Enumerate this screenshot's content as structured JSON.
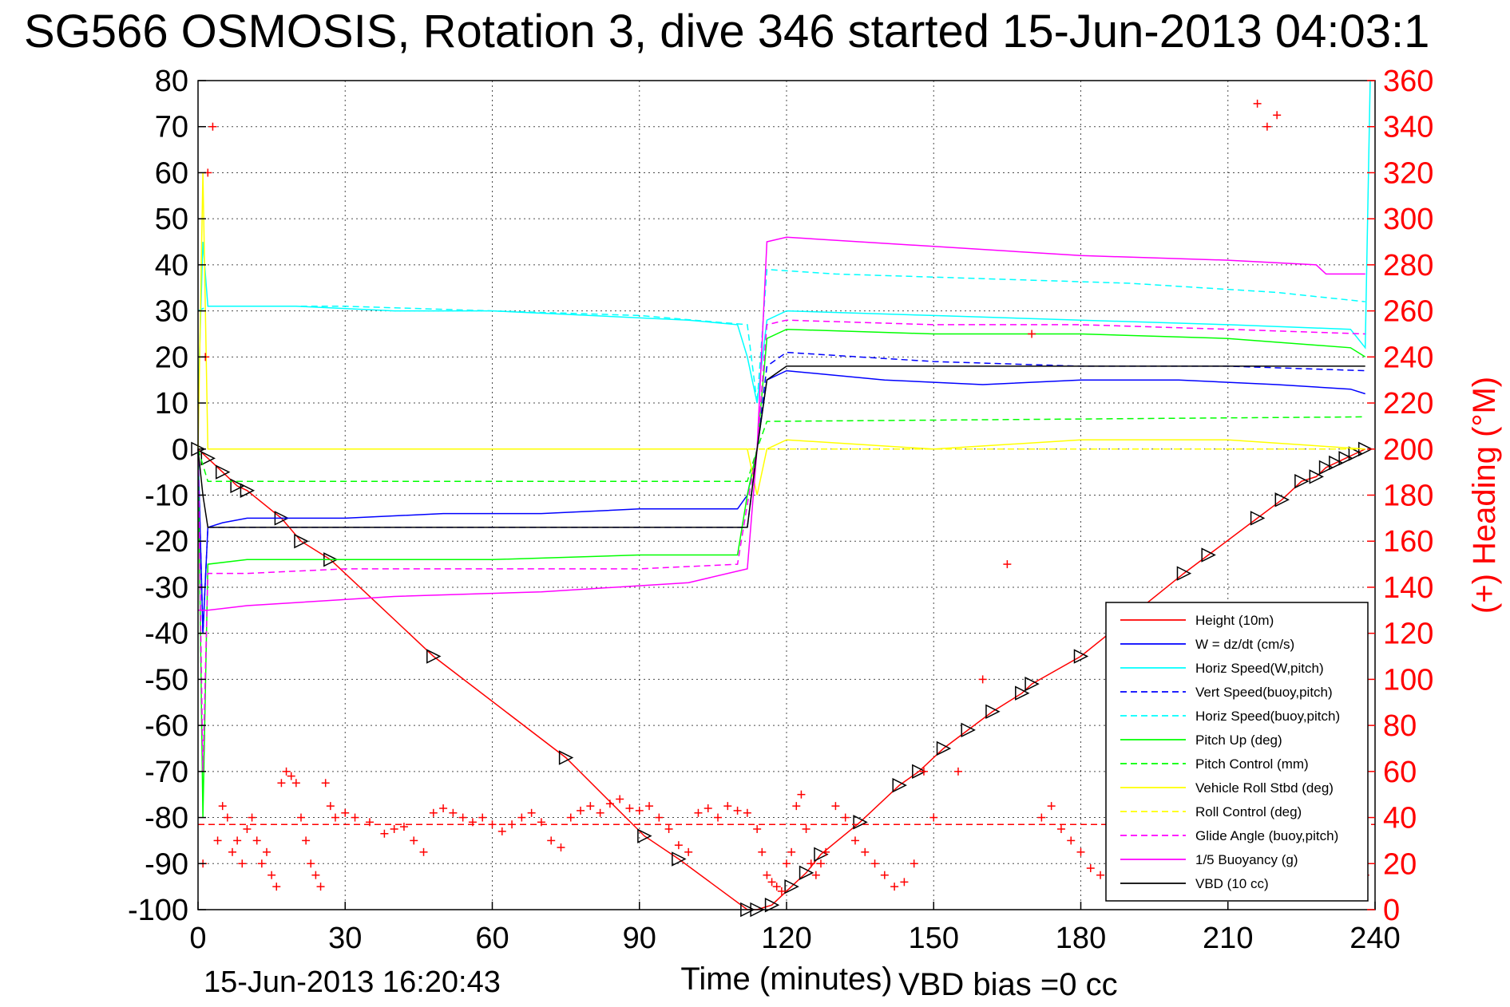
{
  "title": "SG566 OSMOSIS, Rotation 3, dive 346 started 15-Jun-2013 04:03:1",
  "footer": {
    "date": "15-Jun-2013 16:20:43",
    "vbd_bias": "VBD bias =0 cc"
  },
  "colors": {
    "height": "#ff0000",
    "w": "#0000ff",
    "horiz": "#00ffff",
    "pitch": "#00ff00",
    "roll": "#ffff00",
    "glide": "#ff00ff",
    "vbd": "#000000",
    "heading": "#ff0000"
  },
  "chart_data": {
    "type": "line",
    "xlabel": "Time (minutes)",
    "ylabel_right": "(+) Heading (°M)",
    "xlim": [
      0,
      240
    ],
    "ylim": [
      -100,
      80
    ],
    "ylim_right": [
      0,
      360
    ],
    "x_ticks": [
      0,
      30,
      60,
      90,
      120,
      150,
      180,
      210,
      240
    ],
    "y_ticks": [
      80,
      70,
      60,
      50,
      40,
      30,
      20,
      10,
      0,
      -10,
      -20,
      -30,
      -40,
      -50,
      -60,
      -70,
      -80,
      -90,
      -100
    ],
    "y_ticks_right": [
      360,
      340,
      320,
      300,
      280,
      260,
      240,
      220,
      200,
      180,
      160,
      140,
      120,
      100,
      80,
      60,
      40,
      20,
      0
    ],
    "grid": true,
    "legend_position": "bottom-right",
    "series": [
      {
        "name": "Height (10m)",
        "style": "solid",
        "colorKey": "height",
        "markers": "triangles",
        "x": [
          0,
          2,
          5,
          8,
          10,
          17,
          21,
          27,
          48,
          75,
          91,
          98,
          112,
          114,
          117,
          121,
          124,
          127,
          135,
          143,
          147,
          152,
          157,
          162,
          168,
          170,
          180,
          201,
          206,
          216,
          221,
          225,
          228,
          230,
          232,
          234,
          236,
          238
        ],
        "y": [
          0,
          -2,
          -5,
          -8,
          -9,
          -15,
          -20,
          -24,
          -45,
          -67,
          -84,
          -89,
          -100,
          -100,
          -99,
          -95,
          -92,
          -88,
          -81,
          -73,
          -70,
          -65,
          -61,
          -57,
          -53,
          -51,
          -45,
          -27,
          -23,
          -15,
          -11,
          -7,
          -6,
          -4,
          -3,
          -2,
          -1,
          0
        ]
      },
      {
        "name": "W = dz/dt (cm/s)",
        "style": "solid",
        "colorKey": "w",
        "x": [
          0,
          1,
          2,
          5,
          10,
          20,
          30,
          50,
          70,
          90,
          100,
          110,
          112,
          114,
          116,
          120,
          140,
          160,
          180,
          200,
          220,
          235,
          238
        ],
        "y": [
          0,
          -40,
          -17,
          -16,
          -15,
          -15,
          -15,
          -14,
          -14,
          -13,
          -13,
          -13,
          -10,
          0,
          15,
          17,
          15,
          14,
          15,
          15,
          14,
          13,
          12
        ]
      },
      {
        "name": "Horiz Speed(W,pitch)",
        "style": "solid",
        "colorKey": "horiz",
        "x": [
          0,
          1,
          2,
          5,
          20,
          40,
          60,
          80,
          100,
          110,
          112,
          114,
          116,
          120,
          150,
          180,
          210,
          235,
          238,
          239
        ],
        "y": [
          10,
          45,
          31,
          31,
          31,
          30,
          30,
          29,
          28,
          27,
          20,
          10,
          28,
          30,
          29,
          28,
          27,
          26,
          22,
          80
        ]
      },
      {
        "name": "Vert Speed(buoy,pitch)",
        "style": "dashed",
        "colorKey": "w",
        "x": [
          0,
          1,
          2,
          112,
          114,
          116,
          120,
          150,
          180,
          210,
          238
        ],
        "y": [
          0,
          -40,
          -17,
          -17,
          0,
          18,
          21,
          19,
          18,
          18,
          17
        ]
      },
      {
        "name": "Horiz Speed(buoy,pitch)",
        "style": "dashed",
        "colorKey": "horiz",
        "x": [
          0,
          2,
          30,
          60,
          90,
          112,
          114,
          116,
          130,
          160,
          190,
          220,
          238
        ],
        "y": [
          30,
          31,
          31,
          30,
          29,
          27,
          10,
          39,
          38,
          37,
          36,
          34,
          32
        ]
      },
      {
        "name": "Pitch Up (deg)",
        "style": "solid",
        "colorKey": "pitch",
        "x": [
          0,
          1,
          2,
          10,
          30,
          60,
          90,
          110,
          112,
          114,
          116,
          120,
          150,
          180,
          210,
          235,
          238
        ],
        "y": [
          0,
          -80,
          -25,
          -24,
          -24,
          -24,
          -23,
          -23,
          -10,
          0,
          24,
          26,
          25,
          25,
          24,
          22,
          20
        ]
      },
      {
        "name": "Pitch Control (mm)",
        "style": "dashed",
        "colorKey": "pitch",
        "x": [
          0,
          2,
          112,
          114,
          116,
          238
        ],
        "y": [
          0,
          -7,
          -7,
          0,
          6,
          7
        ]
      },
      {
        "name": "Vehicle Roll Stbd (deg)",
        "style": "solid",
        "colorKey": "roll",
        "x": [
          0,
          1,
          2,
          5,
          30,
          60,
          90,
          112,
          114,
          116,
          120,
          150,
          180,
          210,
          238
        ],
        "y": [
          0,
          60,
          0,
          0,
          0,
          0,
          0,
          0,
          -10,
          0,
          2,
          0,
          2,
          2,
          0
        ]
      },
      {
        "name": "Roll Control (deg)",
        "style": "dashed",
        "colorKey": "roll",
        "x": [
          0,
          2,
          112,
          114,
          116,
          238
        ],
        "y": [
          0,
          0,
          0,
          0,
          0,
          0
        ]
      },
      {
        "name": "Glide Angle (buoy,pitch)",
        "style": "dashed",
        "colorKey": "glide",
        "x": [
          0,
          1,
          2,
          10,
          30,
          60,
          90,
          110,
          112,
          114,
          116,
          120,
          150,
          180,
          210,
          238
        ],
        "y": [
          0,
          -70,
          -27,
          -27,
          -26,
          -26,
          -26,
          -25,
          -12,
          0,
          27,
          28,
          27,
          27,
          26,
          25
        ]
      },
      {
        "name": "1/5 Buoyancy (g)",
        "style": "solid",
        "colorKey": "glide",
        "x": [
          0,
          2,
          10,
          40,
          70,
          100,
          112,
          114,
          116,
          120,
          150,
          180,
          210,
          228,
          230,
          238
        ],
        "y": [
          -35,
          -35,
          -34,
          -32,
          -31,
          -29,
          -26,
          0,
          45,
          46,
          44,
          42,
          41,
          40,
          38,
          38
        ]
      },
      {
        "name": "VBD (10 cc)",
        "style": "solid",
        "colorKey": "vbd",
        "x": [
          0,
          1,
          2,
          112,
          114,
          116,
          120,
          238
        ],
        "y": [
          0,
          -10,
          -17,
          -17,
          0,
          15,
          18,
          18
        ]
      }
    ],
    "heading_series": {
      "marker": "+",
      "reference_heading": 37,
      "x": [
        1,
        1.5,
        2,
        3,
        4,
        5,
        6,
        7,
        8,
        9,
        10,
        11,
        12,
        13,
        14,
        15,
        16,
        17,
        18,
        19,
        20,
        21,
        22,
        23,
        24,
        25,
        26,
        27,
        28,
        30,
        32,
        35,
        38,
        40,
        42,
        44,
        46,
        48,
        50,
        52,
        54,
        56,
        58,
        60,
        62,
        64,
        66,
        68,
        70,
        72,
        74,
        76,
        78,
        80,
        82,
        84,
        86,
        88,
        90,
        92,
        94,
        96,
        98,
        100,
        102,
        104,
        106,
        108,
        110,
        112,
        114,
        115,
        116,
        117,
        118,
        119,
        120,
        121,
        122,
        123,
        124,
        125,
        126,
        127,
        128,
        130,
        132,
        134,
        136,
        138,
        140,
        142,
        144,
        146,
        148,
        150,
        155,
        160,
        165,
        170,
        172,
        174,
        176,
        178,
        180,
        182,
        184,
        186,
        188,
        190,
        192,
        194,
        196,
        198,
        200,
        202,
        204,
        206,
        208,
        210,
        212,
        214,
        216,
        218,
        220,
        222,
        224,
        226,
        228,
        230,
        232,
        234,
        236,
        238
      ],
      "y": [
        20,
        240,
        320,
        340,
        30,
        45,
        40,
        25,
        30,
        20,
        35,
        40,
        30,
        20,
        25,
        15,
        10,
        55,
        60,
        58,
        55,
        40,
        30,
        20,
        15,
        10,
        55,
        45,
        40,
        42,
        40,
        38,
        33,
        35,
        36,
        30,
        25,
        42,
        44,
        42,
        40,
        38,
        40,
        37,
        34,
        37,
        40,
        42,
        38,
        30,
        27,
        40,
        43,
        45,
        42,
        46,
        48,
        44,
        43,
        45,
        40,
        35,
        28,
        25,
        42,
        44,
        40,
        45,
        43,
        42,
        35,
        25,
        15,
        12,
        10,
        8,
        20,
        25,
        45,
        50,
        35,
        20,
        15,
        20,
        25,
        45,
        40,
        30,
        25,
        20,
        15,
        10,
        12,
        20,
        60,
        40,
        60,
        100,
        150,
        250,
        40,
        45,
        35,
        30,
        25,
        18,
        15,
        30,
        40,
        45,
        42,
        38,
        30,
        20,
        15,
        10,
        25,
        35,
        20,
        15,
        10,
        25,
        350,
        340,
        345,
        30,
        25,
        20,
        15,
        10,
        28,
        38,
        30,
        15
      ]
    }
  }
}
